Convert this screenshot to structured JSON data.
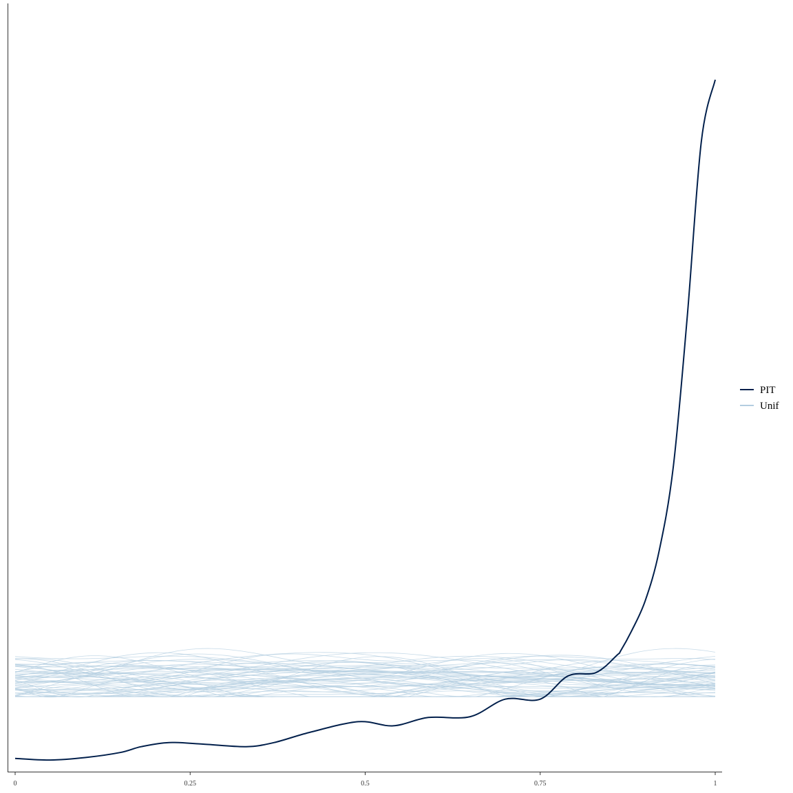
{
  "chart_data": {
    "type": "line",
    "title": "",
    "xlabel": "",
    "ylabel": "",
    "xlim": [
      0,
      1
    ],
    "ylim": [
      0,
      9.0
    ],
    "x_ticks": [
      {
        "value": 0,
        "label": "0"
      },
      {
        "value": 0.25,
        "label": "0.25"
      },
      {
        "value": 0.5,
        "label": "0.5"
      },
      {
        "value": 0.75,
        "label": "0.75"
      },
      {
        "value": 1,
        "label": "1"
      }
    ],
    "y_ticks_shown": false,
    "grid": false,
    "legend": {
      "placement": "right",
      "entries": [
        {
          "label": "PIT",
          "color": "#011F4B"
        },
        {
          "label": "Unif",
          "color": "#B3CDE0"
        }
      ]
    },
    "series": [
      {
        "name": "PIT",
        "color": "#011F4B",
        "x": [
          0.0,
          0.05,
          0.1,
          0.15,
          0.18,
          0.22,
          0.27,
          0.33,
          0.37,
          0.42,
          0.49,
          0.54,
          0.59,
          0.65,
          0.7,
          0.75,
          0.79,
          0.83,
          0.86,
          0.865,
          0.88,
          0.9,
          0.92,
          0.94,
          0.96,
          0.98,
          1.0
        ],
        "y": [
          0.11,
          0.09,
          0.12,
          0.18,
          0.25,
          0.3,
          0.28,
          0.25,
          0.3,
          0.42,
          0.55,
          0.5,
          0.6,
          0.61,
          0.82,
          0.82,
          1.1,
          1.14,
          1.35,
          1.4,
          1.63,
          2.0,
          2.6,
          3.6,
          5.4,
          7.5,
          8.25
        ]
      },
      {
        "name": "Unif",
        "color": "#B3CDE0",
        "replicates": 60,
        "x_range": [
          0,
          1
        ],
        "y_band": [
          0.85,
          1.6
        ]
      }
    ]
  }
}
